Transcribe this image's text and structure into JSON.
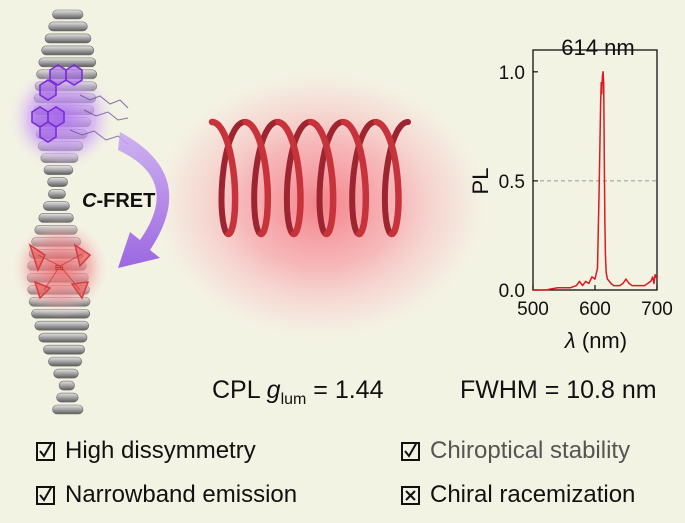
{
  "fret_label": {
    "prefix": "C",
    "suffix": "-FRET"
  },
  "eu_label": "Eu",
  "cpl": {
    "prefix": "CPL ",
    "symbol": "g",
    "subscript": "lum",
    "value": " = 1.44"
  },
  "fwhm": "FWHM = 10.8 nm",
  "peak_label": "614 nm",
  "features": [
    {
      "label": "High dissymmetry",
      "mark": "check"
    },
    {
      "label": "Narrowband emission",
      "mark": "check"
    },
    {
      "label": "Chiroptical stability",
      "mark": "check"
    },
    {
      "label": "Chiral racemization",
      "mark": "cross"
    }
  ],
  "chart_data": {
    "type": "line",
    "xlabel_symbol": "λ",
    "xlabel_unit": " (nm)",
    "ylabel": "PL",
    "xlim": [
      500,
      700
    ],
    "ylim": [
      0,
      1.1
    ],
    "xticks": [
      "500",
      "600",
      "700"
    ],
    "yticks": [
      "0.0",
      "0.5",
      "1.0"
    ],
    "reference_line_y": 0.5,
    "series": [
      {
        "color": "#e0191e",
        "x": [
          500,
          520,
          540,
          560,
          570,
          575,
          580,
          585,
          590,
          595,
          600,
          604,
          607,
          609,
          610,
          611,
          612,
          613,
          614,
          615,
          616,
          617,
          618,
          620,
          623,
          626,
          630,
          640,
          645,
          650,
          655,
          660,
          670,
          680,
          690,
          693,
          695,
          697,
          700
        ],
        "y": [
          0.0,
          0.0,
          0.01,
          0.01,
          0.02,
          0.04,
          0.02,
          0.04,
          0.03,
          0.06,
          0.05,
          0.1,
          0.5,
          0.85,
          0.95,
          0.9,
          0.98,
          1.0,
          0.95,
          0.6,
          0.3,
          0.15,
          0.08,
          0.05,
          0.04,
          0.03,
          0.02,
          0.02,
          0.03,
          0.05,
          0.03,
          0.02,
          0.02,
          0.02,
          0.04,
          0.06,
          0.03,
          0.07,
          0.05
        ]
      }
    ]
  },
  "colors": {
    "background": "#f3f3e4",
    "helix_red": "#c8323a",
    "glow_pink": "#f57c8a",
    "arrow_purple": "#9b5de5",
    "plot_line": "#e0191e"
  }
}
